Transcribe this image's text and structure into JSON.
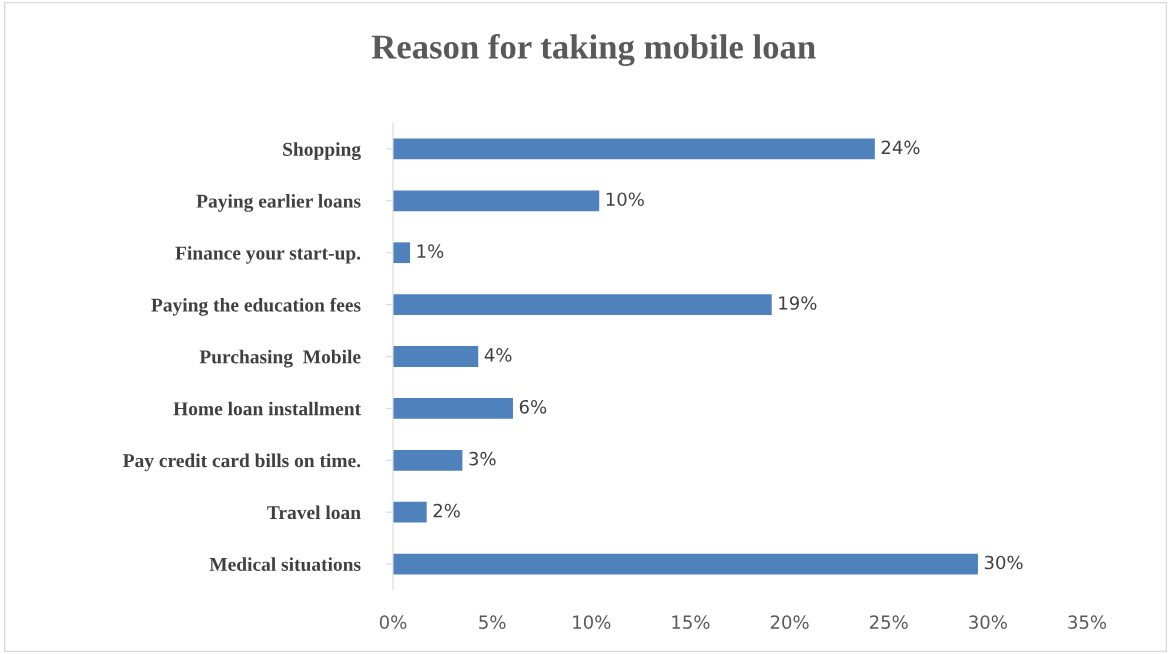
{
  "chart_data": {
    "type": "bar",
    "orientation": "horizontal",
    "title": "Reason for taking mobile loan",
    "categories": [
      "Shopping",
      "Paying earlier loans",
      "Finance your start-up.",
      "Paying the education fees",
      "Purchasing  Mobile",
      "Home loan installment",
      "Pay credit card bills on time.",
      "Travel loan",
      "Medical situations"
    ],
    "values": [
      24.3,
      10.4,
      0.86,
      19.1,
      4.3,
      6.05,
      3.5,
      1.7,
      29.5
    ],
    "value_labels": [
      "24%",
      "10%",
      "1%",
      "19%",
      "4%",
      "6%",
      "3%",
      "2%",
      "30%"
    ],
    "color": "#4f81bd",
    "xlim": [
      0,
      35
    ],
    "xticks": [
      {
        "value": 0,
        "label": "0%"
      },
      {
        "value": 5,
        "label": "5%"
      },
      {
        "value": 10,
        "label": "10%"
      },
      {
        "value": 15,
        "label": "15%"
      },
      {
        "value": 20,
        "label": "20%"
      },
      {
        "value": 25,
        "label": "25%"
      },
      {
        "value": 30,
        "label": "30%"
      },
      {
        "value": 35,
        "label": "35%"
      }
    ],
    "grid": false,
    "legend": false
  }
}
